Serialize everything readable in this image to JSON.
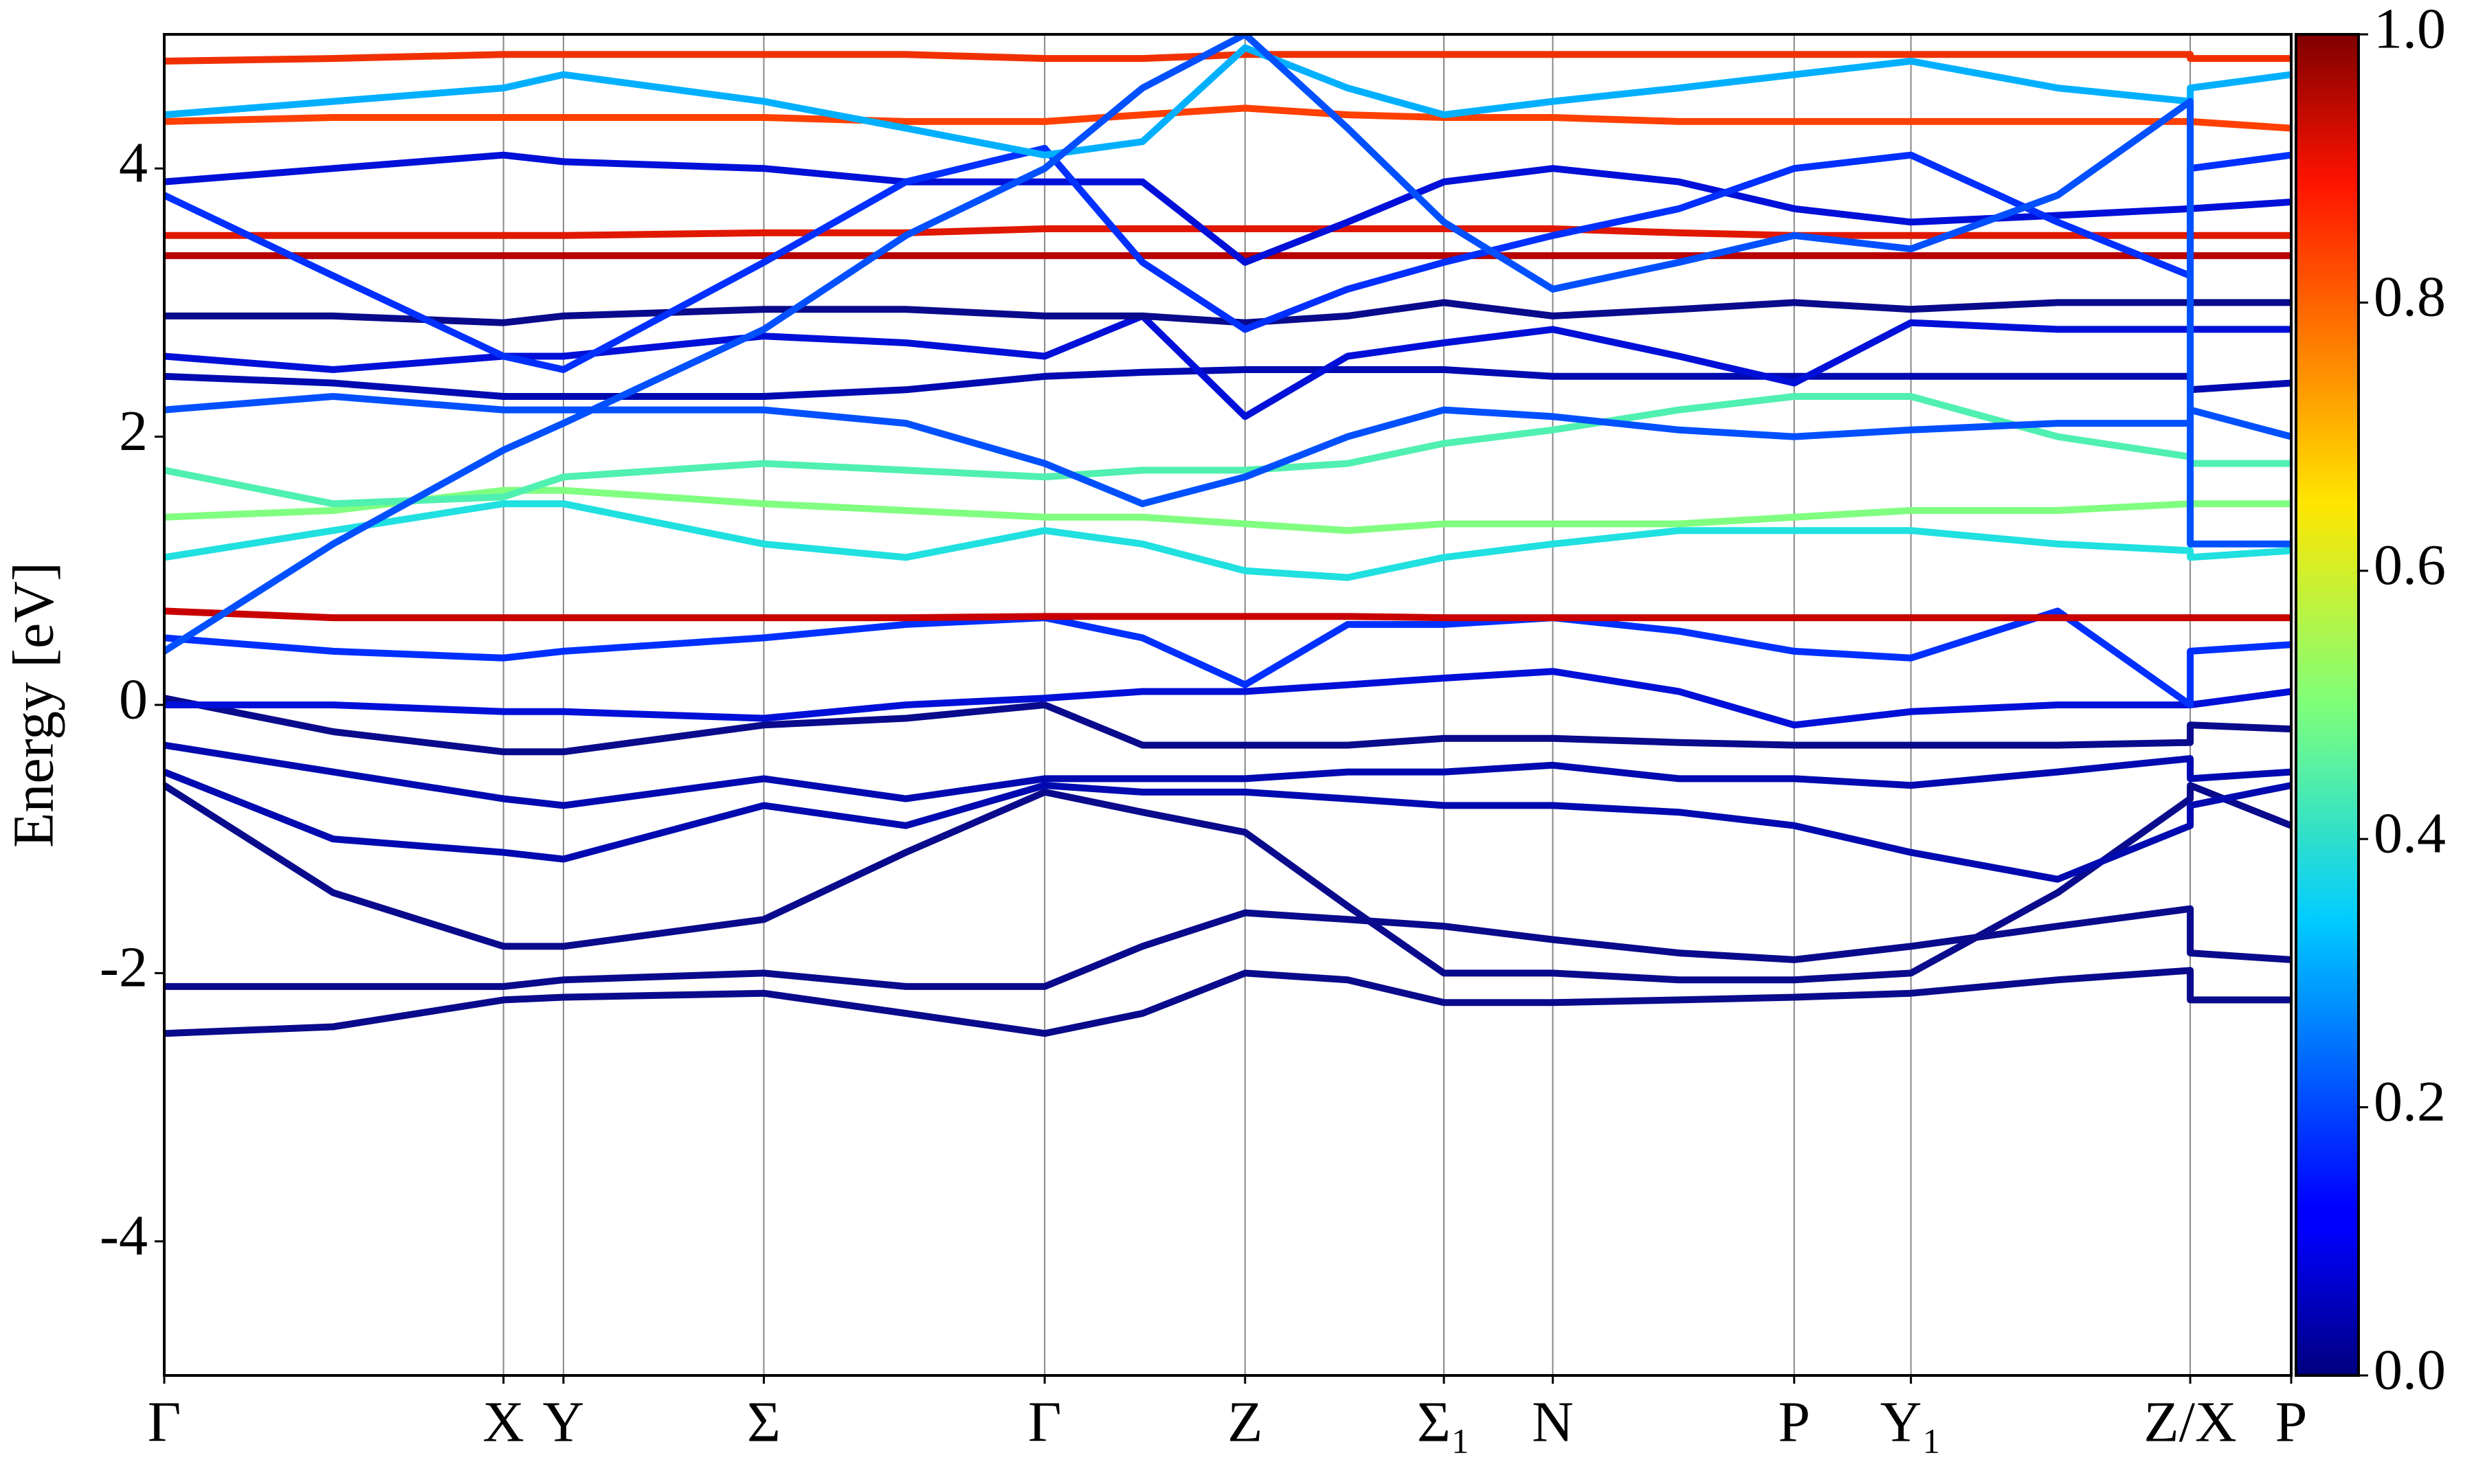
{
  "chart_data": {
    "type": "line",
    "y_label": "Energy [eV]",
    "x": [
      0,
      107,
      215,
      253,
      380,
      470,
      558,
      620,
      685,
      750,
      811,
      880,
      960,
      1033,
      1107,
      1200,
      1284,
      1284,
      1348
    ],
    "xlim": [
      0,
      1348
    ],
    "xticks": [
      {
        "value": 0,
        "label": "Γ"
      },
      {
        "value": 215,
        "label": "X"
      },
      {
        "value": 253,
        "label": "Y"
      },
      {
        "value": 380,
        "label": "Σ"
      },
      {
        "value": 558,
        "label": "Γ"
      },
      {
        "value": 685,
        "label": "Z"
      },
      {
        "value": 811,
        "label": "Σ₁"
      },
      {
        "value": 880,
        "label": "N"
      },
      {
        "value": 1033,
        "label": "P"
      },
      {
        "value": 1107,
        "label": "Y₁"
      },
      {
        "value": 1284,
        "label": "Z/X"
      },
      {
        "value": 1348,
        "label": "P"
      }
    ],
    "ylim": [
      -5,
      5
    ],
    "yticks": [
      -4,
      -2,
      0,
      2,
      4
    ],
    "colorbar": {
      "lim": [
        0,
        1
      ],
      "ticks": [
        {
          "value": 0,
          "label": "0.0"
        },
        {
          "value": 0.2,
          "label": "0.2"
        },
        {
          "value": 0.4,
          "label": "0.4"
        },
        {
          "value": 0.6,
          "label": "0.6"
        },
        {
          "value": 0.8,
          "label": "0.8"
        },
        {
          "value": 1,
          "label": "1.0"
        }
      ]
    },
    "series": [
      {
        "color": "#0a0a8c",
        "values": [
          -2.45,
          -2.4,
          -2.2,
          -2.18,
          -2.15,
          -2.3,
          -2.45,
          -2.3,
          -2.0,
          -2.05,
          -2.22,
          -2.22,
          -2.2,
          -2.18,
          -2.15,
          -2.05,
          -1.98,
          -2.2,
          -2.2
        ]
      },
      {
        "color": "#0a0a8c",
        "values": [
          -2.1,
          -2.1,
          -2.1,
          -2.05,
          -2.0,
          -2.1,
          -2.1,
          -1.8,
          -1.55,
          -1.6,
          -1.65,
          -1.75,
          -1.85,
          -1.9,
          -1.8,
          -1.65,
          -1.52,
          -1.85,
          -1.9
        ]
      },
      {
        "color": "#0a0a8c",
        "values": [
          -0.6,
          -1.4,
          -1.8,
          -1.8,
          -1.6,
          -1.1,
          -0.65,
          -0.8,
          -0.95,
          -1.5,
          -2.0,
          -2.0,
          -2.05,
          -2.05,
          -2.0,
          -1.4,
          -0.7,
          -0.6,
          -0.9
        ]
      },
      {
        "color": "#000ab0",
        "values": [
          -0.5,
          -1.0,
          -1.1,
          -1.15,
          -0.75,
          -0.9,
          -0.6,
          -0.65,
          -0.65,
          -0.7,
          -0.75,
          -0.75,
          -0.8,
          -0.9,
          -1.1,
          -1.3,
          -0.9,
          -0.75,
          -0.6
        ]
      },
      {
        "color": "#000ab0",
        "values": [
          -0.3,
          -0.5,
          -0.7,
          -0.75,
          -0.55,
          -0.7,
          -0.55,
          -0.55,
          -0.55,
          -0.5,
          -0.5,
          -0.45,
          -0.55,
          -0.55,
          -0.6,
          -0.5,
          -0.4,
          -0.55,
          -0.5
        ]
      },
      {
        "color": "#0a0a8c",
        "values": [
          0.05,
          -0.2,
          -0.35,
          -0.35,
          -0.15,
          -0.1,
          0.0,
          -0.3,
          -0.3,
          -0.3,
          -0.25,
          -0.25,
          -0.28,
          -0.3,
          -0.3,
          -0.3,
          -0.28,
          -0.15,
          -0.18
        ]
      },
      {
        "color": "#0010d8",
        "values": [
          0.0,
          0.0,
          -0.05,
          -0.05,
          -0.1,
          0.0,
          0.05,
          0.1,
          0.1,
          0.15,
          0.2,
          0.25,
          0.1,
          -0.15,
          -0.05,
          0.0,
          0.0,
          0.0,
          0.1
        ]
      },
      {
        "color": "#0030ff",
        "values": [
          0.5,
          0.4,
          0.35,
          0.4,
          0.5,
          0.6,
          0.65,
          0.5,
          0.15,
          0.6,
          0.6,
          0.65,
          0.55,
          0.4,
          0.35,
          0.7,
          0.0,
          0.4,
          0.45
        ]
      },
      {
        "color": "#c80000",
        "values": [
          0.7,
          0.65,
          0.65,
          0.65,
          0.65,
          0.65,
          0.66,
          0.66,
          0.66,
          0.66,
          0.65,
          0.65,
          0.65,
          0.65,
          0.65,
          0.65,
          0.65,
          0.65,
          0.65
        ]
      },
      {
        "color": "#20e0e0",
        "values": [
          1.1,
          1.3,
          1.5,
          1.5,
          1.2,
          1.1,
          1.3,
          1.2,
          1.0,
          0.95,
          1.1,
          1.2,
          1.3,
          1.3,
          1.3,
          1.2,
          1.15,
          1.1,
          1.15
        ]
      },
      {
        "color": "#80ff80",
        "values": [
          1.4,
          1.45,
          1.6,
          1.6,
          1.5,
          1.45,
          1.4,
          1.4,
          1.35,
          1.3,
          1.35,
          1.35,
          1.35,
          1.4,
          1.45,
          1.45,
          1.5,
          1.5,
          1.5
        ]
      },
      {
        "color": "#50f0b0",
        "values": [
          1.75,
          1.5,
          1.55,
          1.7,
          1.8,
          1.75,
          1.7,
          1.75,
          1.75,
          1.8,
          1.95,
          2.05,
          2.2,
          2.3,
          2.3,
          2.0,
          1.85,
          1.8,
          1.8
        ]
      },
      {
        "color": "#0050ff",
        "values": [
          2.2,
          2.3,
          2.2,
          2.2,
          2.2,
          2.1,
          1.8,
          1.5,
          1.7,
          2.0,
          2.2,
          2.15,
          2.05,
          2.0,
          2.05,
          2.1,
          2.1,
          2.2,
          2.0
        ]
      },
      {
        "color": "#000ab0",
        "values": [
          2.45,
          2.4,
          2.3,
          2.3,
          2.3,
          2.35,
          2.45,
          2.48,
          2.5,
          2.5,
          2.5,
          2.45,
          2.45,
          2.45,
          2.45,
          2.45,
          2.45,
          2.35,
          2.4
        ]
      },
      {
        "color": "#0010d8",
        "values": [
          2.6,
          2.5,
          2.6,
          2.6,
          2.75,
          2.7,
          2.6,
          2.9,
          2.15,
          2.6,
          2.7,
          2.8,
          2.6,
          2.4,
          2.85,
          2.8,
          2.8,
          2.8,
          2.8
        ]
      },
      {
        "color": "#0a0a8c",
        "values": [
          2.9,
          2.9,
          2.85,
          2.9,
          2.95,
          2.95,
          2.9,
          2.9,
          2.85,
          2.9,
          3.0,
          2.9,
          2.95,
          3.0,
          2.95,
          3.0,
          3.0,
          3.0,
          3.0
        ]
      },
      {
        "color": "#b80000",
        "values": [
          3.35,
          3.35,
          3.35,
          3.35,
          3.35,
          3.35,
          3.35,
          3.35,
          3.35,
          3.35,
          3.35,
          3.35,
          3.35,
          3.35,
          3.35,
          3.35,
          3.35,
          3.35,
          3.35
        ]
      },
      {
        "color": "#e01800",
        "values": [
          3.5,
          3.5,
          3.5,
          3.5,
          3.52,
          3.52,
          3.55,
          3.55,
          3.55,
          3.55,
          3.55,
          3.55,
          3.52,
          3.5,
          3.5,
          3.5,
          3.5,
          3.5,
          3.5
        ]
      },
      {
        "color": "#0010d8",
        "values": [
          3.9,
          4.0,
          4.1,
          4.05,
          4.0,
          3.9,
          3.9,
          3.9,
          3.3,
          3.6,
          3.9,
          4.0,
          3.9,
          3.7,
          3.6,
          3.65,
          3.7,
          3.7,
          3.75
        ]
      },
      {
        "color": "#ff4000",
        "values": [
          4.35,
          4.38,
          4.38,
          4.38,
          4.38,
          4.35,
          4.35,
          4.4,
          4.45,
          4.4,
          4.38,
          4.38,
          4.35,
          4.35,
          4.35,
          4.35,
          4.35,
          4.35,
          4.3
        ]
      },
      {
        "color": "#f03000",
        "values": [
          4.8,
          4.82,
          4.85,
          4.85,
          4.85,
          4.85,
          4.82,
          4.82,
          4.85,
          4.85,
          4.85,
          4.85,
          4.85,
          4.85,
          4.85,
          4.85,
          4.85,
          4.82,
          4.82
        ]
      },
      {
        "color": "#0030ff",
        "values": [
          3.8,
          3.2,
          2.6,
          2.5,
          3.3,
          3.9,
          4.15,
          3.3,
          2.8,
          3.1,
          3.3,
          3.5,
          3.7,
          4.0,
          4.1,
          3.6,
          3.2,
          4.0,
          4.1
        ]
      },
      {
        "color": "#00b0ff",
        "values": [
          4.4,
          4.5,
          4.6,
          4.7,
          4.5,
          4.3,
          4.1,
          4.2,
          4.9,
          4.6,
          4.4,
          4.5,
          4.6,
          4.7,
          4.8,
          4.6,
          4.5,
          4.6,
          4.7
        ]
      },
      {
        "color": "#0050ff",
        "values": [
          0.4,
          1.2,
          1.9,
          2.1,
          2.8,
          3.5,
          4.0,
          4.6,
          5.0,
          4.3,
          3.6,
          3.1,
          3.3,
          3.5,
          3.4,
          3.8,
          4.5,
          1.2,
          1.2
        ]
      }
    ]
  }
}
